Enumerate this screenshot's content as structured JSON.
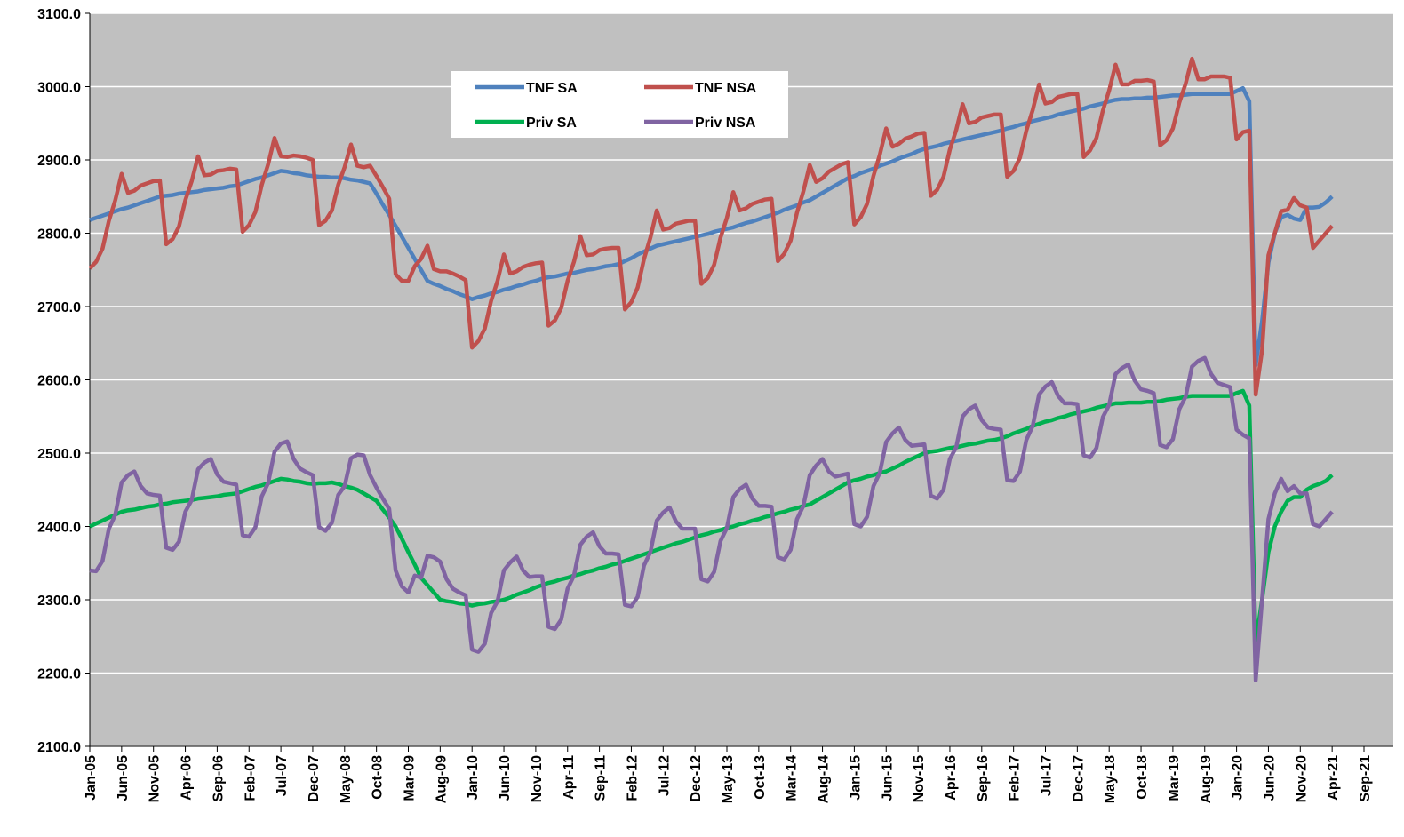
{
  "chart_data": {
    "type": "line",
    "categories": [
      "Jan-05",
      null,
      null,
      null,
      null,
      "Jun-05",
      null,
      null,
      null,
      null,
      "Nov-05",
      null,
      null,
      null,
      null,
      "Apr-06",
      null,
      null,
      null,
      null,
      "Sep-06",
      null,
      null,
      null,
      null,
      "Feb-07",
      null,
      null,
      null,
      null,
      "Jul-07",
      null,
      null,
      null,
      null,
      "Dec-07",
      null,
      null,
      null,
      null,
      "May-08",
      null,
      null,
      null,
      null,
      "Oct-08",
      null,
      null,
      null,
      null,
      "Mar-09",
      null,
      null,
      null,
      null,
      "Aug-09",
      null,
      null,
      null,
      null,
      "Jan-10",
      null,
      null,
      null,
      null,
      "Jun-10",
      null,
      null,
      null,
      null,
      "Nov-10",
      null,
      null,
      null,
      null,
      "Apr-11",
      null,
      null,
      null,
      null,
      "Sep-11",
      null,
      null,
      null,
      null,
      "Feb-12",
      null,
      null,
      null,
      null,
      "Jul-12",
      null,
      null,
      null,
      null,
      "Dec-12",
      null,
      null,
      null,
      null,
      "May-13",
      null,
      null,
      null,
      null,
      "Oct-13",
      null,
      null,
      null,
      null,
      "Mar-14",
      null,
      null,
      null,
      null,
      "Aug-14",
      null,
      null,
      null,
      null,
      "Jan-15",
      null,
      null,
      null,
      null,
      "Jun-15",
      null,
      null,
      null,
      null,
      "Nov-15",
      null,
      null,
      null,
      null,
      "Apr-16",
      null,
      null,
      null,
      null,
      "Sep-16",
      null,
      null,
      null,
      null,
      "Feb-17",
      null,
      null,
      null,
      null,
      "Jul-17",
      null,
      null,
      null,
      null,
      "Dec-17",
      null,
      null,
      null,
      null,
      "May-18",
      null,
      null,
      null,
      null,
      "Oct-18",
      null,
      null,
      null,
      null,
      "Mar-19",
      null,
      null,
      null,
      null,
      "Aug-19",
      null,
      null,
      null,
      null,
      "Jan-20",
      null,
      null,
      null,
      null,
      "Jun-20",
      null,
      null,
      null,
      null,
      "Nov-20",
      null,
      null,
      null,
      null,
      "Apr-21",
      null,
      null,
      null,
      null,
      "Sep-21"
    ],
    "series": [
      {
        "name": "TNF SA",
        "color": "#4f81bd",
        "values": [
          2818,
          2821,
          2824,
          2827,
          2830,
          2833,
          2835,
          2838,
          2841,
          2844,
          2847,
          2850,
          2851,
          2852,
          2854,
          2855,
          2856,
          2857,
          2859,
          2860,
          2861,
          2862,
          2864,
          2865,
          2868,
          2871,
          2874,
          2876,
          2879,
          2882,
          2885,
          2884,
          2882,
          2881,
          2879,
          2878,
          2877,
          2877,
          2876,
          2876,
          2875,
          2873,
          2872,
          2870,
          2868,
          2854,
          2839,
          2825,
          2810,
          2795,
          2780,
          2765,
          2750,
          2735,
          2731,
          2728,
          2724,
          2721,
          2717,
          2714,
          2710,
          2713,
          2715,
          2718,
          2720,
          2723,
          2725,
          2728,
          2730,
          2733,
          2735,
          2738,
          2740,
          2741,
          2743,
          2745,
          2746,
          2748,
          2750,
          2751,
          2753,
          2755,
          2756,
          2758,
          2762,
          2766,
          2771,
          2775,
          2779,
          2783,
          2785,
          2787,
          2789,
          2791,
          2793,
          2795,
          2797,
          2799,
          2802,
          2804,
          2806,
          2808,
          2811,
          2814,
          2816,
          2819,
          2822,
          2825,
          2828,
          2832,
          2835,
          2838,
          2842,
          2845,
          2850,
          2855,
          2860,
          2865,
          2870,
          2875,
          2878,
          2882,
          2885,
          2888,
          2892,
          2895,
          2898,
          2902,
          2905,
          2908,
          2912,
          2915,
          2917,
          2919,
          2922,
          2924,
          2926,
          2928,
          2930,
          2932,
          2934,
          2936,
          2938,
          2940,
          2943,
          2945,
          2948,
          2950,
          2953,
          2955,
          2957,
          2959,
          2962,
          2964,
          2966,
          2968,
          2970,
          2973,
          2975,
          2977,
          2980,
          2982,
          2983,
          2983,
          2984,
          2984,
          2985,
          2985,
          2986,
          2987,
          2988,
          2988,
          2989,
          2990,
          2990,
          2990,
          2990,
          2990,
          2990,
          2990,
          2994,
          2998,
          2980,
          2620,
          2680,
          2760,
          2800,
          2822,
          2825,
          2820,
          2818,
          2835,
          2835,
          2836,
          2842,
          2850,
          null,
          null,
          null,
          null,
          null
        ]
      },
      {
        "name": "TNF NSA",
        "color": "#c0504d",
        "values": [
          2752,
          2761,
          2779,
          2817,
          2845,
          2881,
          2855,
          2858,
          2865,
          2868,
          2871,
          2872,
          2785,
          2792,
          2809,
          2845,
          2871,
          2905,
          2879,
          2880,
          2885,
          2886,
          2888,
          2887,
          2802,
          2811,
          2829,
          2866,
          2894,
          2930,
          2905,
          2904,
          2906,
          2905,
          2903,
          2900,
          2811,
          2817,
          2831,
          2866,
          2890,
          2921,
          2892,
          2890,
          2892,
          2878,
          2863,
          2847,
          2744,
          2735,
          2735,
          2755,
          2765,
          2783,
          2751,
          2748,
          2748,
          2745,
          2741,
          2736,
          2644,
          2653,
          2670,
          2708,
          2735,
          2771,
          2745,
          2748,
          2754,
          2757,
          2759,
          2760,
          2674,
          2681,
          2698,
          2735,
          2761,
          2796,
          2770,
          2771,
          2777,
          2779,
          2780,
          2780,
          2696,
          2706,
          2726,
          2765,
          2794,
          2831,
          2805,
          2807,
          2813,
          2815,
          2817,
          2817,
          2731,
          2739,
          2757,
          2794,
          2821,
          2856,
          2831,
          2834,
          2840,
          2843,
          2846,
          2847,
          2762,
          2772,
          2790,
          2828,
          2857,
          2893,
          2870,
          2875,
          2884,
          2889,
          2894,
          2897,
          2812,
          2822,
          2840,
          2878,
          2907,
          2943,
          2918,
          2922,
          2929,
          2932,
          2936,
          2937,
          2851,
          2859,
          2877,
          2914,
          2941,
          2976,
          2950,
          2952,
          2958,
          2960,
          2962,
          2962,
          2877,
          2885,
          2903,
          2940,
          2968,
          3003,
          2977,
          2979,
          2986,
          2988,
          2990,
          2990,
          2904,
          2913,
          2930,
          2967,
          2995,
          3030,
          3003,
          3003,
          3008,
          3008,
          3009,
          3007,
          2920,
          2927,
          2943,
          2978,
          3004,
          3038,
          3010,
          3010,
          3014,
          3014,
          3014,
          3012,
          2928,
          2938,
          2940,
          2580,
          2640,
          2770,
          2800,
          2830,
          2832,
          2848,
          2838,
          2835,
          2780,
          2790,
          2800,
          2810,
          null,
          null,
          null,
          null,
          null
        ]
      },
      {
        "name": "Priv SA",
        "color": "#00b050",
        "values": [
          2400,
          2404,
          2408,
          2412,
          2416,
          2420,
          2422,
          2423,
          2425,
          2427,
          2428,
          2430,
          2431,
          2433,
          2434,
          2435,
          2436,
          2438,
          2439,
          2440,
          2441,
          2443,
          2444,
          2445,
          2448,
          2451,
          2454,
          2456,
          2459,
          2462,
          2465,
          2464,
          2462,
          2461,
          2459,
          2458,
          2459,
          2459,
          2460,
          2458,
          2455,
          2453,
          2450,
          2445,
          2440,
          2435,
          2423,
          2412,
          2400,
          2383,
          2365,
          2348,
          2330,
          2320,
          2310,
          2300,
          2298,
          2297,
          2295,
          2294,
          2292,
          2294,
          2295,
          2297,
          2298,
          2300,
          2303,
          2307,
          2310,
          2313,
          2317,
          2320,
          2323,
          2325,
          2328,
          2330,
          2333,
          2335,
          2338,
          2340,
          2343,
          2345,
          2348,
          2350,
          2353,
          2356,
          2359,
          2362,
          2365,
          2368,
          2371,
          2374,
          2377,
          2379,
          2382,
          2385,
          2388,
          2390,
          2393,
          2395,
          2398,
          2400,
          2403,
          2405,
          2408,
          2410,
          2413,
          2415,
          2418,
          2420,
          2423,
          2425,
          2428,
          2430,
          2435,
          2440,
          2445,
          2450,
          2455,
          2460,
          2463,
          2465,
          2468,
          2470,
          2473,
          2475,
          2479,
          2483,
          2488,
          2492,
          2496,
          2500,
          2502,
          2503,
          2505,
          2507,
          2508,
          2510,
          2512,
          2513,
          2515,
          2517,
          2518,
          2520,
          2523,
          2527,
          2530,
          2533,
          2537,
          2540,
          2543,
          2545,
          2548,
          2550,
          2553,
          2555,
          2557,
          2559,
          2562,
          2564,
          2566,
          2568,
          2568,
          2569,
          2569,
          2569,
          2570,
          2570,
          2571,
          2573,
          2574,
          2575,
          2577,
          2578,
          2578,
          2578,
          2578,
          2578,
          2578,
          2578,
          2582,
          2585,
          2565,
          2240,
          2300,
          2365,
          2400,
          2420,
          2435,
          2440,
          2440,
          2450,
          2455,
          2458,
          2462,
          2470,
          null,
          null,
          null,
          null,
          null
        ]
      },
      {
        "name": "Priv NSA",
        "color": "#8064a2",
        "values": [
          2340,
          2339,
          2353,
          2397,
          2416,
          2460,
          2470,
          2475,
          2455,
          2445,
          2443,
          2442,
          2371,
          2368,
          2379,
          2420,
          2436,
          2478,
          2487,
          2492,
          2471,
          2461,
          2459,
          2457,
          2388,
          2386,
          2399,
          2441,
          2459,
          2502,
          2513,
          2516,
          2492,
          2479,
          2474,
          2470,
          2399,
          2394,
          2405,
          2443,
          2455,
          2493,
          2498,
          2497,
          2470,
          2453,
          2438,
          2424,
          2340,
          2318,
          2310,
          2333,
          2330,
          2360,
          2358,
          2352,
          2328,
          2315,
          2310,
          2306,
          2232,
          2229,
          2240,
          2282,
          2298,
          2340,
          2351,
          2359,
          2340,
          2331,
          2332,
          2332,
          2263,
          2260,
          2273,
          2315,
          2333,
          2375,
          2386,
          2392,
          2373,
          2363,
          2363,
          2362,
          2293,
          2291,
          2304,
          2347,
          2365,
          2408,
          2419,
          2426,
          2407,
          2397,
          2397,
          2397,
          2328,
          2325,
          2338,
          2380,
          2398,
          2440,
          2451,
          2457,
          2438,
          2428,
          2428,
          2427,
          2358,
          2355,
          2368,
          2410,
          2428,
          2470,
          2483,
          2492,
          2475,
          2468,
          2470,
          2472,
          2403,
          2400,
          2413,
          2455,
          2473,
          2515,
          2527,
          2535,
          2518,
          2510,
          2511,
          2512,
          2442,
          2438,
          2450,
          2492,
          2508,
          2550,
          2560,
          2565,
          2545,
          2535,
          2533,
          2532,
          2463,
          2462,
          2475,
          2518,
          2537,
          2580,
          2591,
          2597,
          2578,
          2568,
          2568,
          2567,
          2497,
          2494,
          2507,
          2549,
          2566,
          2608,
          2616,
          2621,
          2599,
          2587,
          2585,
          2582,
          2511,
          2508,
          2519,
          2560,
          2577,
          2618,
          2626,
          2630,
          2608,
          2596,
          2593,
          2590,
          2532,
          2525,
          2520,
          2190,
          2300,
          2410,
          2445,
          2465,
          2448,
          2455,
          2445,
          2445,
          2403,
          2400,
          2410,
          2420,
          null,
          null,
          null,
          null,
          null
        ]
      }
    ],
    "ylim": [
      2100,
      3100
    ],
    "yticks": [
      {
        "value": 2100,
        "label": "2100.0"
      },
      {
        "value": 2200,
        "label": "2200.0"
      },
      {
        "value": 2300,
        "label": "2300.0"
      },
      {
        "value": 2400,
        "label": "2400.0"
      },
      {
        "value": 2500,
        "label": "2500.0"
      },
      {
        "value": 2600,
        "label": "2600.0"
      },
      {
        "value": 2700,
        "label": "2700.0"
      },
      {
        "value": 2800,
        "label": "2800.0"
      },
      {
        "value": 2900,
        "label": "2900.0"
      },
      {
        "value": 3000,
        "label": "3000.0"
      },
      {
        "value": 3100,
        "label": "3100.0"
      }
    ],
    "grid": true,
    "legend": "upper-center",
    "background": "#c0c0c0"
  }
}
